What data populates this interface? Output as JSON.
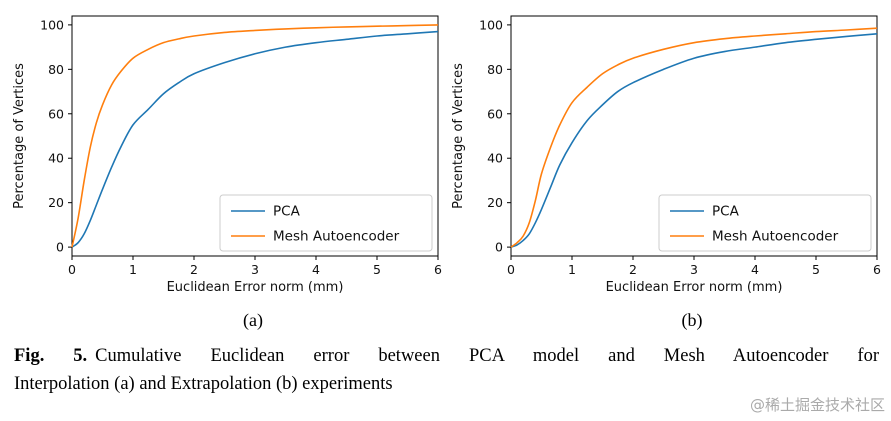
{
  "caption": {
    "label": "Fig. 5.",
    "line1": "Cumulative Euclidean error between PCA model and Mesh Autoencoder for",
    "line2": "Interpolation (a) and Extrapolation (b) experiments"
  },
  "watermark": "@稀土掘金技术社区",
  "colors": {
    "pca": "#1f77b4",
    "mesh_autoencoder": "#ff7f0e",
    "legend_border": "#cccccc",
    "axis": "#000000"
  },
  "chart_data": [
    {
      "type": "line",
      "sublabel": "(a)",
      "experiment": "Interpolation",
      "xlabel": "Euclidean Error norm (mm)",
      "ylabel": "Percentage of Vertices",
      "xlim": [
        0,
        6
      ],
      "ylim": [
        -4,
        104
      ],
      "xticks": [
        0,
        1,
        2,
        3,
        4,
        5,
        6
      ],
      "yticks": [
        0,
        20,
        40,
        60,
        80,
        100
      ],
      "legend_loc": "lower right",
      "grid": false,
      "x": [
        0,
        0.1,
        0.2,
        0.3,
        0.4,
        0.5,
        0.65,
        0.8,
        1,
        1.25,
        1.5,
        1.75,
        2,
        2.5,
        3,
        3.5,
        4,
        4.5,
        5,
        5.5,
        6
      ],
      "series": [
        {
          "name": "PCA",
          "color": "#1f77b4",
          "values": [
            0,
            2,
            6,
            12,
            19,
            26,
            36,
            45,
            55,
            62,
            69,
            74,
            78,
            83,
            87,
            90,
            92,
            93.5,
            95,
            96,
            97
          ]
        },
        {
          "name": "Mesh Autoencoder",
          "color": "#ff7f0e",
          "values": [
            0,
            13,
            30,
            45,
            56,
            64,
            73,
            79,
            85,
            89,
            92,
            93.7,
            95,
            96.6,
            97.5,
            98.2,
            98.7,
            99.1,
            99.4,
            99.7,
            100
          ]
        }
      ]
    },
    {
      "type": "line",
      "sublabel": "(b)",
      "experiment": "Extrapolation",
      "xlabel": "Euclidean Error norm (mm)",
      "ylabel": "Percentage of Vertices",
      "xlim": [
        0,
        6
      ],
      "ylim": [
        -4,
        104
      ],
      "xticks": [
        0,
        1,
        2,
        3,
        4,
        5,
        6
      ],
      "yticks": [
        0,
        20,
        40,
        60,
        80,
        100
      ],
      "legend_loc": "lower right",
      "grid": false,
      "x": [
        0,
        0.1,
        0.2,
        0.3,
        0.4,
        0.5,
        0.65,
        0.8,
        1,
        1.25,
        1.5,
        1.75,
        2,
        2.5,
        3,
        3.5,
        4,
        4.5,
        5,
        5.5,
        6
      ],
      "series": [
        {
          "name": "PCA",
          "color": "#1f77b4",
          "values": [
            0,
            1,
            3,
            6,
            11,
            17,
            27,
            37,
            47,
            57,
            64,
            70,
            74,
            80,
            85,
            88,
            90,
            92,
            93.5,
            94.8,
            96
          ]
        },
        {
          "name": "Mesh Autoencoder",
          "color": "#ff7f0e",
          "values": [
            0,
            2,
            5,
            11,
            21,
            33,
            45,
            55,
            65,
            72,
            78,
            82,
            85,
            89,
            92,
            93.8,
            95,
            96,
            97,
            97.7,
            98.5
          ]
        }
      ]
    }
  ]
}
